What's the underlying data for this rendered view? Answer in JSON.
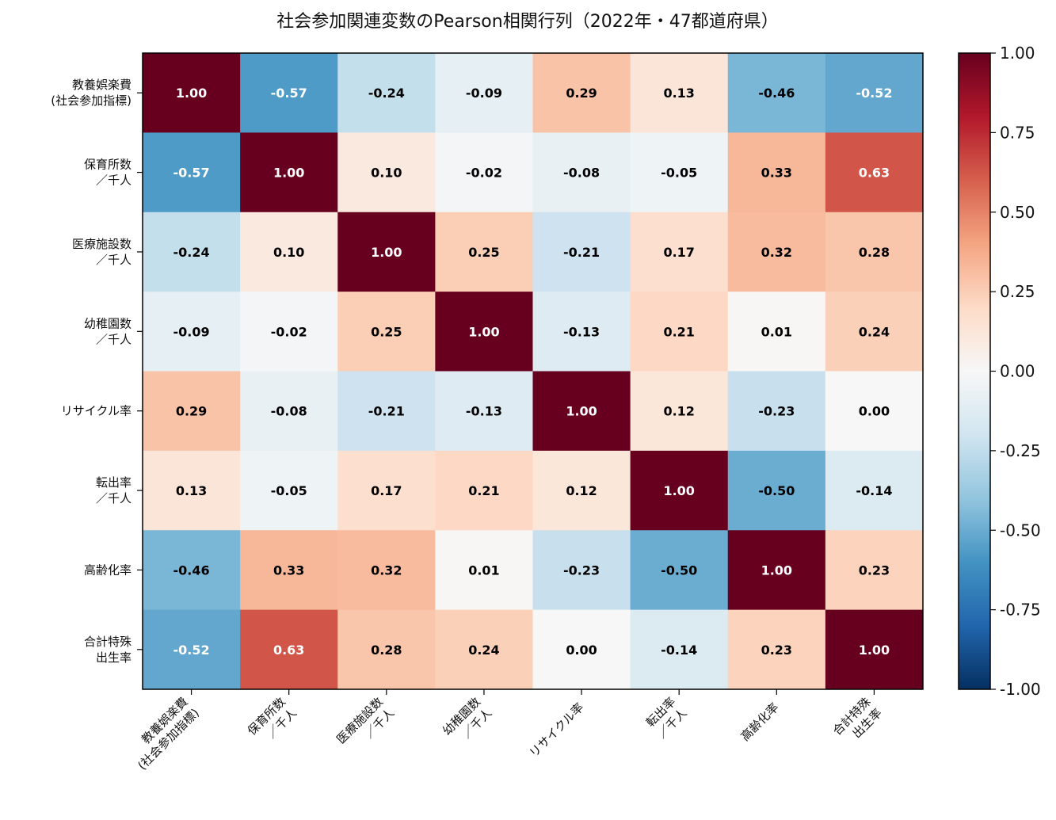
{
  "chart_data": {
    "type": "heatmap",
    "title": "社会参加関連変数のPearson相関行列（2022年・47都道府県）",
    "row_labels": [
      [
        "教養娯楽費",
        "(社会参加指標)"
      ],
      [
        "保育所数",
        "／千人"
      ],
      [
        "医療施設数",
        "／千人"
      ],
      [
        "幼稚園数",
        "／千人"
      ],
      [
        "リサイクル率"
      ],
      [
        "転出率",
        "／千人"
      ],
      [
        "高齢化率"
      ],
      [
        "合計特殊",
        "出生率"
      ]
    ],
    "col_labels": [
      [
        "教養娯楽費",
        "(社会参加指標)"
      ],
      [
        "保育所数",
        "／千人"
      ],
      [
        "医療施設数",
        "／千人"
      ],
      [
        "幼稚園数",
        "／千人"
      ],
      [
        "リサイクル率"
      ],
      [
        "転出率",
        "／千人"
      ],
      [
        "高齢化率"
      ],
      [
        "合計特殊",
        "出生率"
      ]
    ],
    "values": [
      [
        1.0,
        -0.57,
        -0.24,
        -0.09,
        0.29,
        0.13,
        -0.46,
        -0.52
      ],
      [
        -0.57,
        1.0,
        0.1,
        -0.02,
        -0.08,
        -0.05,
        0.33,
        0.63
      ],
      [
        -0.24,
        0.1,
        1.0,
        0.25,
        -0.21,
        0.17,
        0.32,
        0.28
      ],
      [
        -0.09,
        -0.02,
        0.25,
        1.0,
        -0.13,
        0.21,
        0.01,
        0.24
      ],
      [
        0.29,
        -0.08,
        -0.21,
        -0.13,
        1.0,
        0.12,
        -0.23,
        -0.0
      ],
      [
        0.13,
        -0.05,
        0.17,
        0.21,
        0.12,
        1.0,
        -0.5,
        -0.14
      ],
      [
        -0.46,
        0.33,
        0.32,
        0.01,
        -0.23,
        -0.5,
        1.0,
        0.23
      ],
      [
        -0.52,
        0.63,
        0.28,
        0.24,
        -0.0,
        -0.14,
        0.23,
        1.0
      ]
    ],
    "colormap": "RdBu_r",
    "vmin": -1.0,
    "vmax": 1.0,
    "colorbar_ticks": [
      "1.00",
      "0.75",
      "0.50",
      "0.25",
      "0.00",
      "-0.25",
      "-0.50",
      "-0.75",
      "-1.00"
    ],
    "legend_placement": "right",
    "grid": false
  }
}
